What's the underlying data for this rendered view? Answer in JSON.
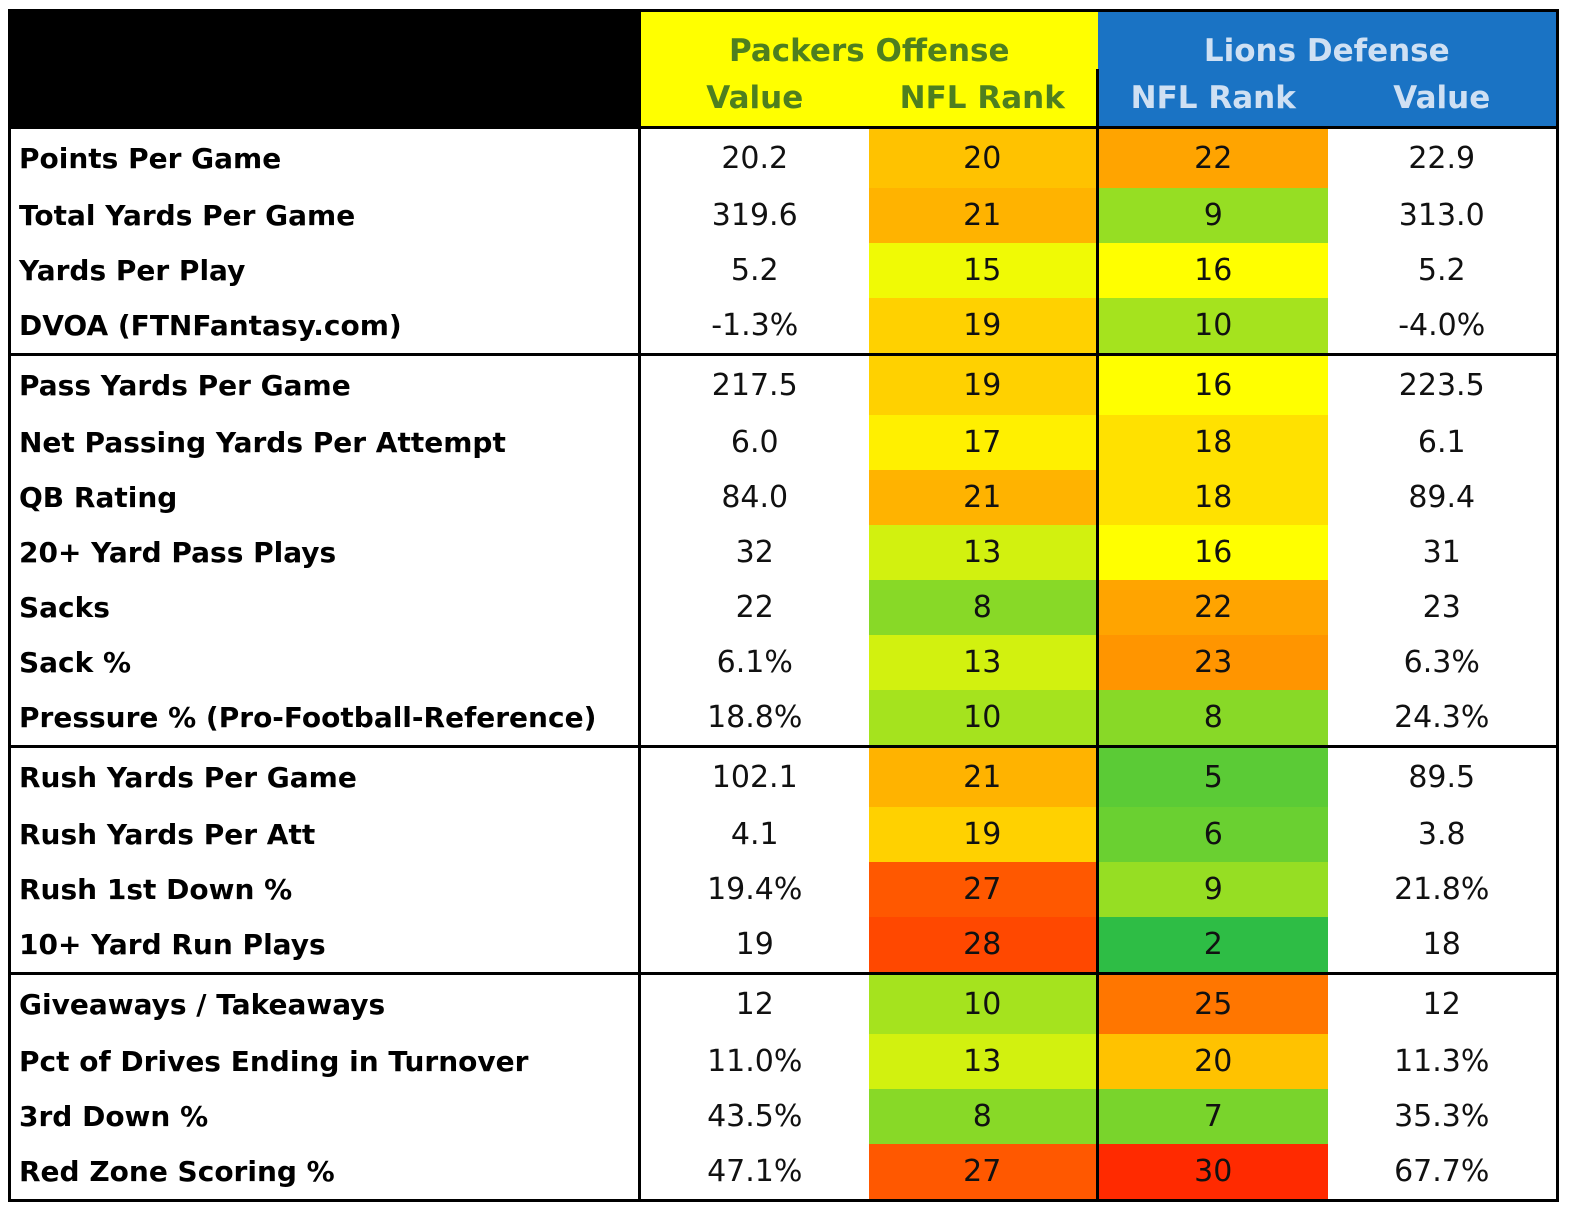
{
  "header": {
    "packers_title": "Packers Offense",
    "lions_title": "Lions Defense",
    "packers_cols": [
      "Value",
      "NFL Rank"
    ],
    "lions_cols": [
      "NFL Rank",
      "Value"
    ]
  },
  "colors": {
    "packers_header_bg": "#ffff00",
    "packers_header_text": "#4e7f1f",
    "lions_header_bg": "#1a73c4",
    "lions_header_text": "#cfe0f3",
    "rank_scale_best": "#1fb84a",
    "rank_scale_mid": "#ffff00",
    "rank_scale_worst": "#ff2a00"
  },
  "groups": [
    {
      "rows": [
        {
          "stat": "Points Per Game",
          "gb_value": "20.2",
          "gb_rank": 20,
          "det_rank": 22,
          "det_value": "22.9"
        },
        {
          "stat": "Total Yards Per Game",
          "gb_value": "319.6",
          "gb_rank": 21,
          "det_rank": 9,
          "det_value": "313.0"
        },
        {
          "stat": "Yards Per Play",
          "gb_value": "5.2",
          "gb_rank": 15,
          "det_rank": 16,
          "det_value": "5.2"
        },
        {
          "stat": "DVOA (FTNFantasy.com)",
          "gb_value": "-1.3%",
          "gb_rank": 19,
          "det_rank": 10,
          "det_value": "-4.0%"
        }
      ]
    },
    {
      "rows": [
        {
          "stat": "Pass Yards Per Game",
          "gb_value": "217.5",
          "gb_rank": 19,
          "det_rank": 16,
          "det_value": "223.5"
        },
        {
          "stat": "Net Passing Yards Per Attempt",
          "gb_value": "6.0",
          "gb_rank": 17,
          "det_rank": 18,
          "det_value": "6.1"
        },
        {
          "stat": "QB Rating",
          "gb_value": "84.0",
          "gb_rank": 21,
          "det_rank": 18,
          "det_value": "89.4"
        },
        {
          "stat": "20+ Yard Pass Plays",
          "gb_value": "32",
          "gb_rank": 13,
          "det_rank": 16,
          "det_value": "31"
        },
        {
          "stat": "Sacks",
          "gb_value": "22",
          "gb_rank": 8,
          "det_rank": 22,
          "det_value": "23"
        },
        {
          "stat": "Sack %",
          "gb_value": "6.1%",
          "gb_rank": 13,
          "det_rank": 23,
          "det_value": "6.3%"
        },
        {
          "stat": "Pressure % (Pro-Football-Reference)",
          "gb_value": "18.8%",
          "gb_rank": 10,
          "det_rank": 8,
          "det_value": "24.3%"
        }
      ]
    },
    {
      "rows": [
        {
          "stat": "Rush Yards Per Game",
          "gb_value": "102.1",
          "gb_rank": 21,
          "det_rank": 5,
          "det_value": "89.5"
        },
        {
          "stat": "Rush Yards Per Att",
          "gb_value": "4.1",
          "gb_rank": 19,
          "det_rank": 6,
          "det_value": "3.8"
        },
        {
          "stat": "Rush 1st Down %",
          "gb_value": "19.4%",
          "gb_rank": 27,
          "det_rank": 9,
          "det_value": "21.8%"
        },
        {
          "stat": "10+ Yard Run Plays",
          "gb_value": "19",
          "gb_rank": 28,
          "det_rank": 2,
          "det_value": "18"
        }
      ]
    },
    {
      "rows": [
        {
          "stat": "Giveaways / Takeaways",
          "gb_value": "12",
          "gb_rank": 10,
          "det_rank": 25,
          "det_value": "12"
        },
        {
          "stat": "Pct of Drives Ending in Turnover",
          "gb_value": "11.0%",
          "gb_rank": 13,
          "det_rank": 20,
          "det_value": "11.3%"
        },
        {
          "stat": "3rd Down %",
          "gb_value": "43.5%",
          "gb_rank": 8,
          "det_rank": 7,
          "det_value": "35.3%"
        },
        {
          "stat": "Red Zone Scoring %",
          "gb_value": "47.1%",
          "gb_rank": 27,
          "det_rank": 30,
          "det_value": "67.7%"
        }
      ]
    }
  ]
}
